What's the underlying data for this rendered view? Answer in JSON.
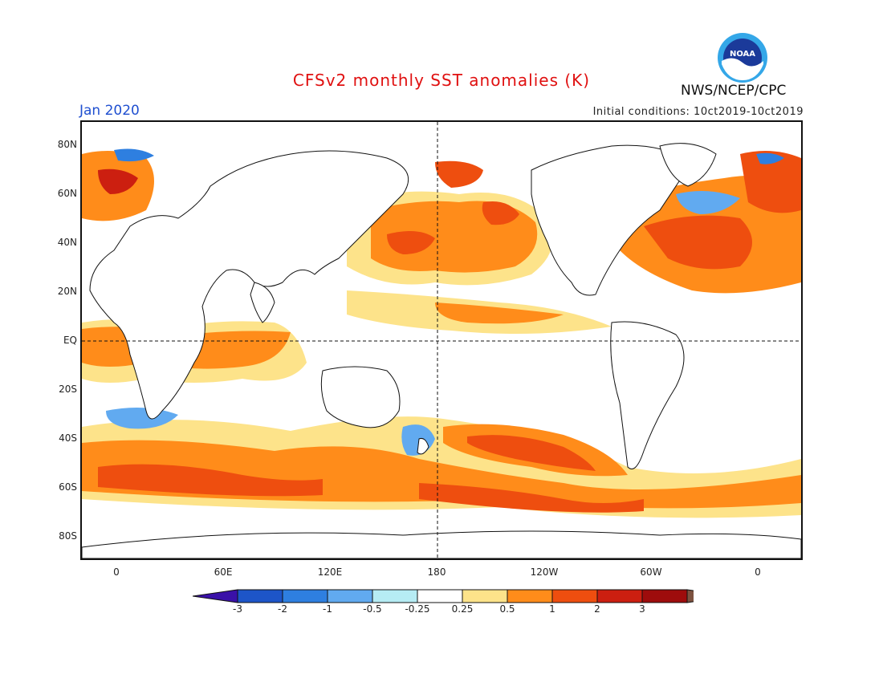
{
  "title": "CFSv2 monthly SST anomalies (K)",
  "month": "Jan 2020",
  "initial_conditions": "Initial conditions: 10ct2019-10ct2019",
  "agency": "NWS/NCEP/CPC",
  "logo_text": "NOAA",
  "lat_labels": [
    "80N",
    "60N",
    "40N",
    "20N",
    "EQ",
    "20S",
    "40S",
    "60S",
    "80S"
  ],
  "lon_labels": [
    "0",
    "60E",
    "120E",
    "180",
    "120W",
    "60W",
    "0"
  ],
  "colorbar": {
    "labels": [
      "-3",
      "-2",
      "-1",
      "-0.5",
      "-0.25",
      "0.25",
      "0.5",
      "1",
      "2",
      "3"
    ],
    "colors": [
      "#3a11a8",
      "#1d55c8",
      "#2e7fe0",
      "#61aaf0",
      "#b6ecf4",
      "#ffffff",
      "#fde38a",
      "#ff8c1a",
      "#ee4e0f",
      "#cc1f10",
      "#9e0c0c",
      "#7d5240"
    ]
  }
}
